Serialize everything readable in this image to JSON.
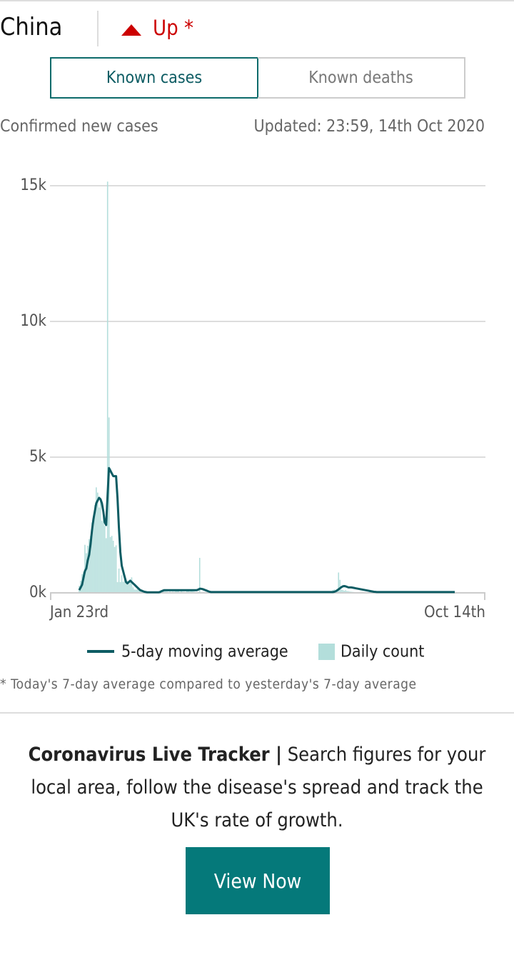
{
  "header": {
    "country": "China",
    "trend": "Up *"
  },
  "tabs": [
    "Known cases",
    "Known deaths"
  ],
  "subheader": {
    "left": "Confirmed new cases",
    "right": "Updated: 23:59, 14th Oct 2020"
  },
  "chart_data": {
    "type": "bar-line",
    "categories": [
      "Jan 23rd",
      null,
      null,
      null,
      null,
      null,
      null,
      null,
      null,
      null,
      null,
      null,
      null,
      null,
      null,
      null,
      null,
      null,
      null,
      null,
      null,
      null,
      null,
      null,
      null,
      null,
      null,
      null,
      null,
      null,
      null,
      null,
      null,
      null,
      null,
      null,
      null,
      null,
      null,
      null,
      null,
      null,
      null,
      null,
      null,
      null,
      null,
      null,
      null,
      null,
      null,
      null,
      null,
      null,
      null,
      null,
      null,
      null,
      null,
      null,
      null,
      null,
      null,
      null,
      null,
      null,
      null,
      null,
      null,
      null,
      null,
      null,
      null,
      null,
      null,
      null,
      null,
      null,
      null,
      null,
      null,
      null,
      null,
      null,
      null,
      null,
      null,
      null,
      null,
      null,
      null,
      null,
      null,
      null,
      null,
      null,
      null,
      null,
      null,
      null,
      null,
      null,
      null,
      null,
      null,
      null,
      null,
      null,
      null,
      null,
      null,
      null,
      null,
      null,
      null,
      null,
      null,
      null,
      null,
      null,
      null,
      null,
      null,
      null,
      null,
      null,
      null,
      null,
      null,
      null,
      null,
      null,
      null,
      null,
      null,
      null,
      null,
      null,
      null,
      null,
      null,
      null,
      null,
      null,
      null,
      null,
      null,
      null,
      null,
      null,
      null,
      null,
      null,
      null,
      null,
      null,
      null,
      null,
      null,
      null,
      null,
      null,
      null,
      null,
      null,
      null,
      null,
      null,
      null,
      null,
      null,
      null,
      null,
      null,
      null,
      null,
      null,
      null,
      null,
      null,
      null,
      null,
      null,
      null,
      null,
      null,
      null,
      null,
      null,
      null,
      null,
      null,
      null,
      null,
      null,
      null,
      null,
      null,
      null,
      null,
      null,
      null,
      null,
      null,
      null,
      null,
      null,
      null,
      null,
      null,
      null,
      null,
      null,
      null,
      null,
      null,
      null,
      null,
      null,
      null,
      null,
      null,
      null,
      null,
      null,
      null,
      null,
      null,
      null,
      null,
      null,
      null,
      null,
      null,
      null,
      null,
      null,
      null,
      null,
      null,
      null,
      null,
      null,
      null,
      null,
      null,
      null,
      null,
      null,
      null,
      null,
      null,
      null,
      null,
      null,
      null,
      null,
      null,
      null,
      null,
      null,
      null,
      null,
      null,
      null,
      "Oct 14th"
    ],
    "series": [
      {
        "name": "5-day moving average",
        "type": "line",
        "color": "#0d5c63",
        "values": [
          100,
          200,
          300,
          550,
          800,
          900,
          1200,
          1400,
          1800,
          2300,
          2700,
          3000,
          3300,
          3400,
          3500,
          3450,
          3300,
          3000,
          2600,
          2500,
          3600,
          4600,
          4500,
          4400,
          4300,
          4300,
          4300,
          3500,
          2400,
          1500,
          1000,
          800,
          600,
          400,
          350,
          400,
          450,
          400,
          350,
          300,
          250,
          200,
          150,
          100,
          80,
          60,
          40,
          30,
          20,
          20,
          20,
          20,
          20,
          20,
          20,
          20,
          20,
          30,
          60,
          80,
          100,
          100,
          100,
          100,
          100,
          100,
          100,
          100,
          100,
          100,
          100,
          100,
          100,
          100,
          100,
          100,
          100,
          100,
          100,
          100,
          100,
          100,
          100,
          100,
          120,
          150,
          150,
          140,
          120,
          100,
          80,
          60,
          40,
          30,
          30,
          30,
          30,
          30,
          30,
          30,
          30,
          30,
          30,
          30,
          30,
          30,
          30,
          30,
          30,
          30,
          30,
          30,
          30,
          30,
          30,
          30,
          30,
          30,
          30,
          30,
          30,
          30,
          30,
          30,
          30,
          30,
          30,
          30,
          30,
          30,
          30,
          30,
          30,
          30,
          30,
          30,
          30,
          30,
          30,
          30,
          30,
          30,
          30,
          30,
          30,
          30,
          30,
          30,
          30,
          30,
          30,
          30,
          30,
          30,
          30,
          30,
          30,
          30,
          30,
          30,
          30,
          30,
          30,
          30,
          30,
          30,
          30,
          30,
          30,
          30,
          30,
          30,
          30,
          30,
          30,
          30,
          30,
          30,
          30,
          30,
          40,
          60,
          90,
          130,
          170,
          210,
          240,
          250,
          240,
          220,
          200,
          200,
          200,
          190,
          180,
          170,
          160,
          150,
          140,
          130,
          120,
          110,
          100,
          90,
          80,
          70,
          60,
          50,
          40,
          35,
          30,
          30,
          30,
          30,
          30,
          30,
          30,
          30,
          30,
          30,
          30,
          30,
          30,
          30,
          30,
          30,
          30,
          30,
          30,
          30,
          30,
          30,
          30,
          30,
          30,
          30,
          30,
          30,
          30,
          30,
          30,
          30,
          30,
          30,
          30,
          30,
          30,
          30,
          30,
          30,
          30,
          30,
          30,
          30,
          30,
          30,
          30,
          30,
          30,
          30,
          30,
          30,
          30,
          30,
          30,
          30
        ]
      },
      {
        "name": "Daily count",
        "type": "bar",
        "color": "#b3dedb",
        "values": [
          259,
          444,
          688,
          769,
          1771,
          1459,
          1737,
          1982,
          2102,
          2590,
          2829,
          3235,
          3887,
          3694,
          3143,
          3385,
          2652,
          2973,
          2467,
          2015,
          15152,
          6463,
          2055,
          2100,
          1921,
          1692,
          1752,
          395,
          893,
          397,
          648,
          409,
          508,
          406,
          433,
          327,
          427,
          573,
          202,
          125,
          119,
          139,
          143,
          99,
          44,
          40,
          19,
          24,
          15,
          20,
          11,
          20,
          16,
          21,
          39,
          46,
          39,
          78,
          47,
          67,
          55,
          54,
          45,
          31,
          48,
          31,
          45,
          35,
          61,
          99,
          86,
          30,
          63,
          39,
          32,
          26,
          99,
          108,
          46,
          89,
          56,
          43,
          27,
          27,
          11,
          1290,
          20,
          12,
          11,
          30,
          6,
          22,
          6,
          12,
          3,
          4,
          12,
          1,
          2,
          1,
          4,
          6,
          2,
          3,
          1,
          2,
          1,
          14,
          17,
          1,
          2,
          3,
          7,
          6,
          3,
          5,
          11,
          1,
          3,
          2,
          1,
          2,
          6,
          3,
          6,
          2,
          1,
          2,
          5,
          3,
          3,
          9,
          4,
          3,
          7,
          3,
          4,
          3,
          4,
          18,
          57,
          36,
          49,
          40,
          32,
          27,
          28,
          19,
          25,
          21,
          13,
          19,
          11,
          7,
          3,
          2,
          4,
          7,
          7,
          11,
          8,
          5,
          7,
          8,
          8,
          3,
          10,
          10,
          14,
          22,
          11,
          10,
          8,
          16,
          18,
          22,
          14,
          22,
          46,
          105,
          127,
          68,
          61,
          750,
          480,
          123,
          105,
          80,
          98,
          68,
          61,
          49,
          43,
          36,
          30,
          27,
          27,
          22,
          25,
          19,
          23,
          22,
          19,
          14,
          17,
          27,
          16,
          12,
          22,
          11,
          13,
          24,
          15,
          12,
          16,
          10,
          13,
          11,
          14,
          9,
          7,
          10,
          8,
          15,
          12,
          13,
          9,
          10,
          14,
          10,
          8,
          11,
          6,
          7,
          7,
          9,
          10,
          12,
          14,
          7,
          10,
          10,
          13,
          8,
          7,
          10,
          10,
          12,
          16,
          13,
          20,
          11,
          9,
          14,
          12,
          17,
          21,
          23,
          14,
          12,
          21,
          15,
          17,
          6,
          13,
          21
        ]
      }
    ],
    "ylim": [
      0,
      15000
    ],
    "yticks": [
      {
        "value": 0,
        "label": "0k"
      },
      {
        "value": 5000,
        "label": "5k"
      },
      {
        "value": 10000,
        "label": "10k"
      },
      {
        "value": 15000,
        "label": "15k"
      }
    ],
    "grid": true
  },
  "footnote": "* Today's 7-day average compared to yesterday's 7-day average",
  "promo": {
    "title": "Coronavirus Live Tracker |",
    "text": "Search figures for your local area, follow the disease's spread and track the UK's rate of growth.",
    "button": "View Now"
  }
}
